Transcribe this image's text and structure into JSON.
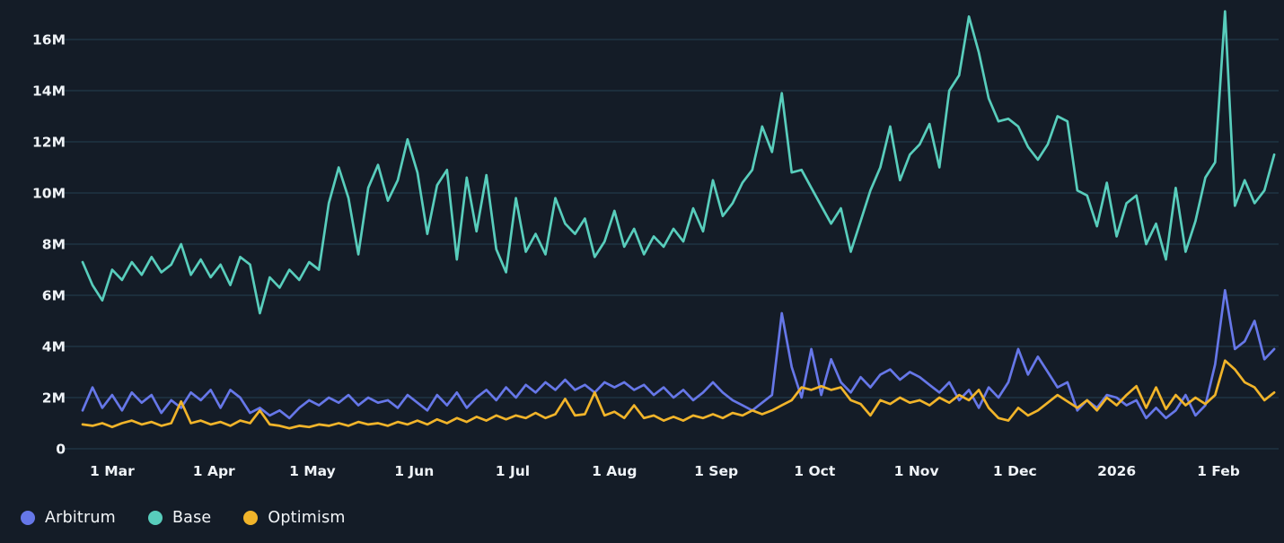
{
  "colors": {
    "background": "#141c27",
    "grid_line": "#2a4d61",
    "axis_text": "#eff3f7",
    "legend_text": "#f3f6f9",
    "arbitrum": "#6677e8",
    "base": "#58cdbc",
    "optimism": "#f1b42a"
  },
  "chart_data": {
    "type": "line",
    "title": "",
    "xlabel": "",
    "ylabel": "",
    "unit": "M",
    "grid": "horizontal-only",
    "legend_position": "bottom-left",
    "ylim": [
      0,
      17.5
    ],
    "y_ticks": [
      {
        "value": 0,
        "label": "0"
      },
      {
        "value": 2,
        "label": "2M"
      },
      {
        "value": 4,
        "label": "4M"
      },
      {
        "value": 6,
        "label": "6M"
      },
      {
        "value": 8,
        "label": "8M"
      },
      {
        "value": 10,
        "label": "10M"
      },
      {
        "value": 12,
        "label": "12M"
      },
      {
        "value": 14,
        "label": "14M"
      },
      {
        "value": 16,
        "label": "16M"
      }
    ],
    "x_axis": {
      "description": "Daily series from ~20 Feb 2025 to ~18 Feb 2026, sampled every 3 days; day offsets measured from first data point",
      "tick_labels": [
        "1 Mar",
        "1 Apr",
        "1 May",
        "1 Jun",
        "1 Jul",
        "1 Aug",
        "1 Sep",
        "1 Oct",
        "1 Nov",
        "1 Dec",
        "2026",
        "1 Feb"
      ],
      "tick_days": [
        9,
        40,
        70,
        101,
        131,
        162,
        193,
        223,
        254,
        284,
        315,
        346
      ]
    },
    "sample_interval_days": 3,
    "series": [
      {
        "name": "Arbitrum",
        "color": "#6677e8",
        "values": [
          1.5,
          2.4,
          1.6,
          2.1,
          1.5,
          2.2,
          1.8,
          2.1,
          1.4,
          1.9,
          1.6,
          2.2,
          1.9,
          2.3,
          1.6,
          2.3,
          2.0,
          1.4,
          1.6,
          1.3,
          1.5,
          1.2,
          1.6,
          1.9,
          1.7,
          2.0,
          1.8,
          2.1,
          1.7,
          2.0,
          1.8,
          1.9,
          1.6,
          2.1,
          1.8,
          1.5,
          2.1,
          1.7,
          2.2,
          1.6,
          2.0,
          2.3,
          1.9,
          2.4,
          2.0,
          2.5,
          2.2,
          2.6,
          2.3,
          2.7,
          2.3,
          2.5,
          2.2,
          2.6,
          2.4,
          2.6,
          2.3,
          2.5,
          2.1,
          2.4,
          2.0,
          2.3,
          1.9,
          2.2,
          2.6,
          2.2,
          1.9,
          1.7,
          1.5,
          1.8,
          2.1,
          5.3,
          3.2,
          2.0,
          3.9,
          2.1,
          3.5,
          2.6,
          2.2,
          2.8,
          2.4,
          2.9,
          3.1,
          2.7,
          3.0,
          2.8,
          2.5,
          2.2,
          2.6,
          1.9,
          2.3,
          1.6,
          2.4,
          2.0,
          2.6,
          3.9,
          2.9,
          3.6,
          3.0,
          2.4,
          2.6,
          1.5,
          1.9,
          1.6,
          2.1,
          2.0,
          1.7,
          1.9,
          1.2,
          1.6,
          1.2,
          1.5,
          2.1,
          1.3,
          1.7,
          3.3,
          6.2,
          3.9,
          4.2,
          5.0,
          3.5,
          3.9
        ]
      },
      {
        "name": "Base",
        "color": "#58cdbc",
        "values": [
          7.3,
          6.4,
          5.8,
          7.0,
          6.6,
          7.3,
          6.8,
          7.5,
          6.9,
          7.2,
          8.0,
          6.8,
          7.4,
          6.7,
          7.2,
          6.4,
          7.5,
          7.2,
          5.3,
          6.7,
          6.3,
          7.0,
          6.6,
          7.3,
          7.0,
          9.6,
          11.0,
          9.8,
          7.6,
          10.2,
          11.1,
          9.7,
          10.5,
          12.1,
          10.8,
          8.4,
          10.3,
          10.9,
          7.4,
          10.6,
          8.5,
          10.7,
          7.8,
          6.9,
          9.8,
          7.7,
          8.4,
          7.6,
          9.8,
          8.8,
          8.4,
          9.0,
          7.5,
          8.1,
          9.3,
          7.9,
          8.6,
          7.6,
          8.3,
          7.9,
          8.6,
          8.1,
          9.4,
          8.5,
          10.5,
          9.1,
          9.6,
          10.4,
          10.9,
          12.6,
          11.6,
          13.9,
          10.8,
          10.9,
          10.2,
          9.5,
          8.8,
          9.4,
          7.7,
          8.9,
          10.1,
          11.0,
          12.6,
          10.5,
          11.5,
          11.9,
          12.7,
          11.0,
          14.0,
          14.6,
          16.9,
          15.5,
          13.7,
          12.8,
          12.9,
          12.6,
          11.8,
          11.3,
          11.9,
          13.0,
          12.8,
          10.1,
          9.9,
          8.7,
          10.4,
          8.3,
          9.6,
          9.9,
          8.0,
          8.8,
          7.4,
          10.2,
          7.7,
          8.9,
          10.6,
          11.2,
          17.1,
          9.5,
          10.5,
          9.6,
          10.1,
          11.5
        ]
      },
      {
        "name": "Optimism",
        "color": "#f1b42a",
        "values": [
          0.95,
          0.9,
          1.0,
          0.85,
          1.0,
          1.1,
          0.95,
          1.05,
          0.9,
          1.0,
          1.85,
          1.0,
          1.1,
          0.95,
          1.05,
          0.9,
          1.1,
          1.0,
          1.5,
          0.95,
          0.9,
          0.8,
          0.9,
          0.85,
          0.95,
          0.9,
          1.0,
          0.9,
          1.05,
          0.95,
          1.0,
          0.9,
          1.05,
          0.95,
          1.1,
          0.95,
          1.15,
          1.0,
          1.2,
          1.05,
          1.25,
          1.1,
          1.3,
          1.15,
          1.3,
          1.2,
          1.4,
          1.2,
          1.35,
          1.95,
          1.3,
          1.35,
          2.2,
          1.3,
          1.45,
          1.2,
          1.7,
          1.2,
          1.3,
          1.1,
          1.25,
          1.1,
          1.3,
          1.2,
          1.35,
          1.2,
          1.4,
          1.3,
          1.5,
          1.35,
          1.5,
          1.7,
          1.9,
          2.4,
          2.3,
          2.45,
          2.3,
          2.4,
          1.9,
          1.75,
          1.3,
          1.9,
          1.75,
          2.0,
          1.8,
          1.9,
          1.7,
          2.0,
          1.8,
          2.1,
          1.9,
          2.3,
          1.6,
          1.2,
          1.1,
          1.6,
          1.3,
          1.5,
          1.8,
          2.1,
          1.85,
          1.6,
          1.9,
          1.5,
          2.0,
          1.7,
          2.1,
          2.45,
          1.6,
          2.4,
          1.55,
          2.1,
          1.7,
          2.0,
          1.75,
          2.1,
          3.45,
          3.1,
          2.6,
          2.4,
          1.9,
          2.2
        ]
      }
    ]
  }
}
